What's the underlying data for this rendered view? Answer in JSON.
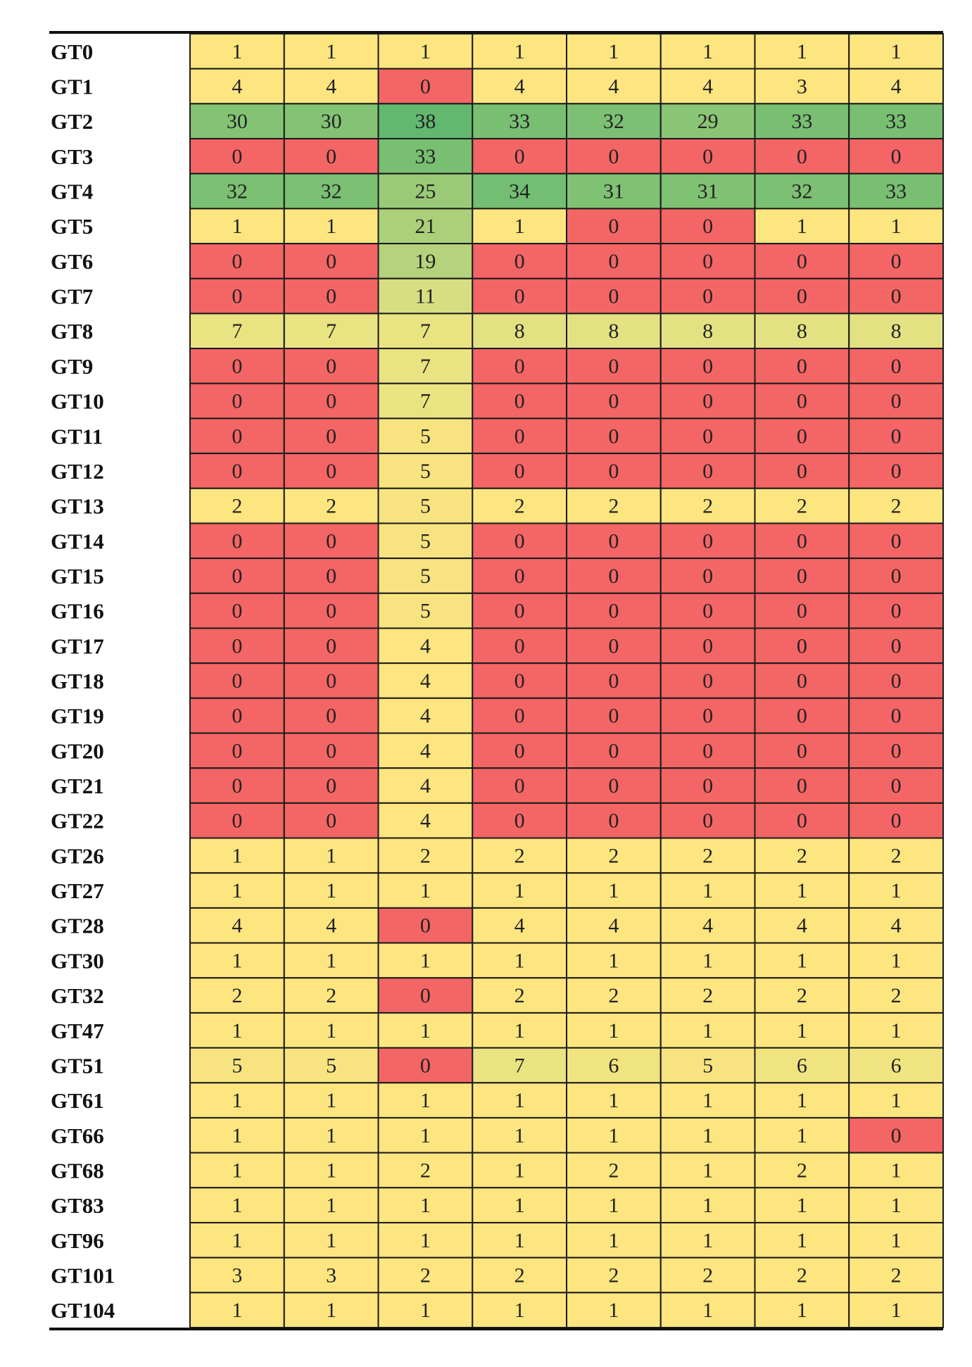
{
  "chart_data": {
    "type": "heatmap",
    "title": "",
    "xlabel": "",
    "ylabel": "",
    "grid": true,
    "legend": "none",
    "colors": {
      "zero": "#f46565",
      "low": "#fde57f",
      "mid": "#e3e283",
      "high": "#62b86f"
    },
    "rows": [
      "GT0",
      "GT1",
      "GT2",
      "GT3",
      "GT4",
      "GT5",
      "GT6",
      "GT7",
      "GT8",
      "GT9",
      "GT10",
      "GT11",
      "GT12",
      "GT13",
      "GT14",
      "GT15",
      "GT16",
      "GT17",
      "GT18",
      "GT19",
      "GT20",
      "GT21",
      "GT22",
      "GT26",
      "GT27",
      "GT28",
      "GT30",
      "GT32",
      "GT47",
      "GT51",
      "GT61",
      "GT66",
      "GT68",
      "GT83",
      "GT96",
      "GT101",
      "GT104"
    ],
    "values": [
      [
        1,
        1,
        1,
        1,
        1,
        1,
        1,
        1
      ],
      [
        4,
        4,
        0,
        4,
        4,
        4,
        3,
        4
      ],
      [
        30,
        30,
        38,
        33,
        32,
        29,
        33,
        33
      ],
      [
        0,
        0,
        33,
        0,
        0,
        0,
        0,
        0
      ],
      [
        32,
        32,
        25,
        34,
        31,
        31,
        32,
        33
      ],
      [
        1,
        1,
        21,
        1,
        0,
        0,
        1,
        1
      ],
      [
        0,
        0,
        19,
        0,
        0,
        0,
        0,
        0
      ],
      [
        0,
        0,
        11,
        0,
        0,
        0,
        0,
        0
      ],
      [
        7,
        7,
        7,
        8,
        8,
        8,
        8,
        8
      ],
      [
        0,
        0,
        7,
        0,
        0,
        0,
        0,
        0
      ],
      [
        0,
        0,
        7,
        0,
        0,
        0,
        0,
        0
      ],
      [
        0,
        0,
        5,
        0,
        0,
        0,
        0,
        0
      ],
      [
        0,
        0,
        5,
        0,
        0,
        0,
        0,
        0
      ],
      [
        2,
        2,
        5,
        2,
        2,
        2,
        2,
        2
      ],
      [
        0,
        0,
        5,
        0,
        0,
        0,
        0,
        0
      ],
      [
        0,
        0,
        5,
        0,
        0,
        0,
        0,
        0
      ],
      [
        0,
        0,
        5,
        0,
        0,
        0,
        0,
        0
      ],
      [
        0,
        0,
        4,
        0,
        0,
        0,
        0,
        0
      ],
      [
        0,
        0,
        4,
        0,
        0,
        0,
        0,
        0
      ],
      [
        0,
        0,
        4,
        0,
        0,
        0,
        0,
        0
      ],
      [
        0,
        0,
        4,
        0,
        0,
        0,
        0,
        0
      ],
      [
        0,
        0,
        4,
        0,
        0,
        0,
        0,
        0
      ],
      [
        0,
        0,
        4,
        0,
        0,
        0,
        0,
        0
      ],
      [
        1,
        1,
        2,
        2,
        2,
        2,
        2,
        2
      ],
      [
        1,
        1,
        1,
        1,
        1,
        1,
        1,
        1
      ],
      [
        4,
        4,
        0,
        4,
        4,
        4,
        4,
        4
      ],
      [
        1,
        1,
        1,
        1,
        1,
        1,
        1,
        1
      ],
      [
        2,
        2,
        0,
        2,
        2,
        2,
        2,
        2
      ],
      [
        1,
        1,
        1,
        1,
        1,
        1,
        1,
        1
      ],
      [
        5,
        5,
        0,
        7,
        6,
        5,
        6,
        6
      ],
      [
        1,
        1,
        1,
        1,
        1,
        1,
        1,
        1
      ],
      [
        1,
        1,
        1,
        1,
        1,
        1,
        1,
        0
      ],
      [
        1,
        1,
        2,
        1,
        2,
        1,
        2,
        1
      ],
      [
        1,
        1,
        1,
        1,
        1,
        1,
        1,
        1
      ],
      [
        1,
        1,
        1,
        1,
        1,
        1,
        1,
        1
      ],
      [
        3,
        3,
        2,
        2,
        2,
        2,
        2,
        2
      ],
      [
        1,
        1,
        1,
        1,
        1,
        1,
        1,
        1
      ]
    ]
  }
}
